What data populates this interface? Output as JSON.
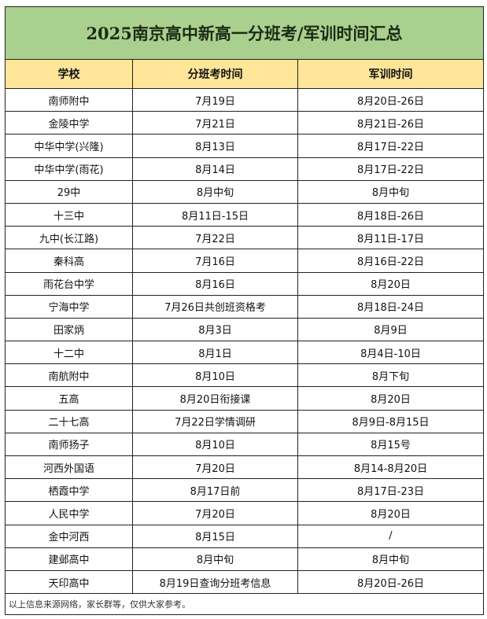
{
  "title": "2025南京高中新高一分班考/军训时间汇总",
  "colors": {
    "title_bg": "#a9d08e",
    "header_bg": "#ffe699"
  },
  "headers": [
    "学校",
    "分班考时间",
    "军训时间"
  ],
  "rows": [
    [
      "南师附中",
      "7月19日",
      "8月20日-26日"
    ],
    [
      "金陵中学",
      "7月21日",
      "8月21日-26日"
    ],
    [
      "中华中学(兴隆)",
      "8月13日",
      "8月17日-22日"
    ],
    [
      "中华中学(雨花)",
      "8月14日",
      "8月17日-22日"
    ],
    [
      "29中",
      "8月中旬",
      "8月中旬"
    ],
    [
      "十三中",
      "8月11日-15日",
      "8月18日-26日"
    ],
    [
      "九中(长江路)",
      "7月22日",
      "8月11日-17日"
    ],
    [
      "秦科高",
      "7月16日",
      "8月16日-22日"
    ],
    [
      "雨花台中学",
      "8月16日",
      "8月20日"
    ],
    [
      "宁海中学",
      "7月26日共创班资格考",
      "8月18日-24日"
    ],
    [
      "田家炳",
      "8月3日",
      "8月9日"
    ],
    [
      "十二中",
      "8月1日",
      "8月4日-10日"
    ],
    [
      "南航附中",
      "8月10日",
      "8月下旬"
    ],
    [
      "五高",
      "8月20日衔接课",
      "8月20日"
    ],
    [
      "二十七高",
      "7月22日学情调研",
      "8月9日-8月15日"
    ],
    [
      "南师扬子",
      "8月10日",
      "8月15号"
    ],
    [
      "河西外国语",
      "7月20日",
      "8月14-8月20日"
    ],
    [
      "栖霞中学",
      "8月17日前",
      "8月17日-23日"
    ],
    [
      "人民中学",
      "7月20日",
      "8月20日"
    ],
    [
      "金中河西",
      "8月15日",
      "/"
    ],
    [
      "建邺高中",
      "8月中旬",
      "8月中旬"
    ],
    [
      "天印高中",
      "8月19日查询分班考信息",
      "8月20日-26日"
    ]
  ],
  "footer": "以上信息来源网络，家长群等，仅供大家参考。"
}
